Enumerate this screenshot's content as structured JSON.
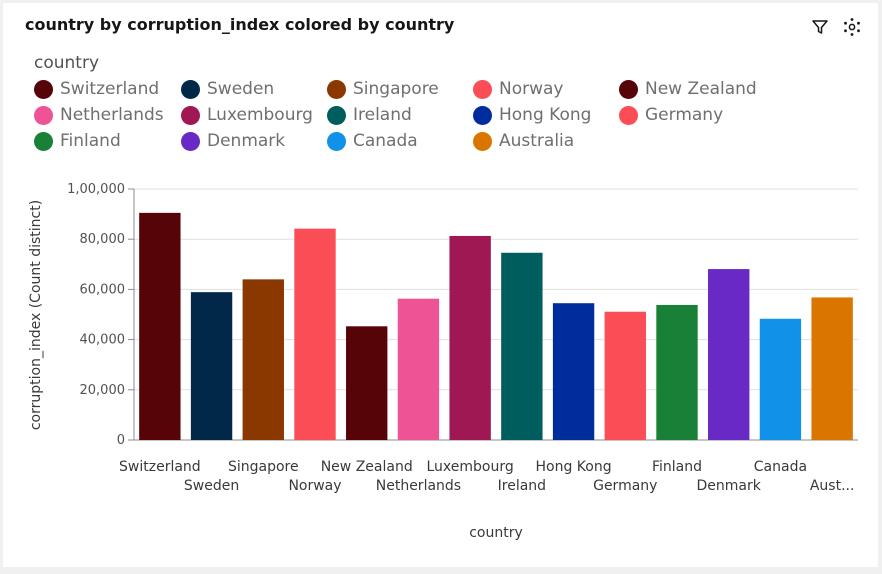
{
  "title": "country by corruption_index colored by country",
  "toolbar": {
    "filter_icon": "filter-icon",
    "settings_icon": "settings-icon"
  },
  "legend": {
    "title": "country",
    "items": [
      {
        "label": "Switzerland",
        "color": "#570408"
      },
      {
        "label": "Sweden",
        "color": "#012749"
      },
      {
        "label": "Singapore",
        "color": "#8a3800"
      },
      {
        "label": "Norway",
        "color": "#fa4d56"
      },
      {
        "label": "New Zealand",
        "color": "#570408"
      },
      {
        "label": "Netherlands",
        "color": "#ee5396"
      },
      {
        "label": "Luxembourg",
        "color": "#9f1853"
      },
      {
        "label": "Ireland",
        "color": "#005d5d"
      },
      {
        "label": "Hong Kong",
        "color": "#002d9c"
      },
      {
        "label": "Germany",
        "color": "#fa4d56"
      },
      {
        "label": "Finland",
        "color": "#198038"
      },
      {
        "label": "Denmark",
        "color": "#6929c4"
      },
      {
        "label": "Canada",
        "color": "#1192e8"
      },
      {
        "label": "Australia",
        "color": "#da7600"
      }
    ]
  },
  "chart_data": {
    "type": "bar",
    "xlabel": "country",
    "ylabel": "corruption_index (Count distinct)",
    "ylim": [
      0,
      100000
    ],
    "yticks": [
      0,
      20000,
      40000,
      60000,
      80000,
      100000
    ],
    "ytick_labels": [
      "0",
      "20,000",
      "40,000",
      "60,000",
      "80,000",
      "1,00,000"
    ],
    "categories": [
      "Switzerland",
      "Sweden",
      "Singapore",
      "Norway",
      "New Zealand",
      "Netherlands",
      "Luxembourg",
      "Ireland",
      "Hong Kong",
      "Germany",
      "Finland",
      "Denmark",
      "Canada",
      "Australia"
    ],
    "category_labels": [
      "Switzerland",
      "Sweden",
      "Singapore",
      "Norway",
      "New Zealand",
      "Netherlands",
      "Luxembourg",
      "Ireland",
      "Hong Kong",
      "Germany",
      "Finland",
      "Denmark",
      "Canada",
      "Aust..."
    ],
    "values": [
      90500,
      58900,
      64000,
      84200,
      45300,
      56300,
      81300,
      74600,
      54500,
      51100,
      53800,
      68100,
      48300,
      56800
    ],
    "colors": [
      "#570408",
      "#012749",
      "#8a3800",
      "#fa4d56",
      "#570408",
      "#ee5396",
      "#9f1853",
      "#005d5d",
      "#002d9c",
      "#fa4d56",
      "#198038",
      "#6929c4",
      "#1192e8",
      "#da7600"
    ],
    "grid": true
  }
}
